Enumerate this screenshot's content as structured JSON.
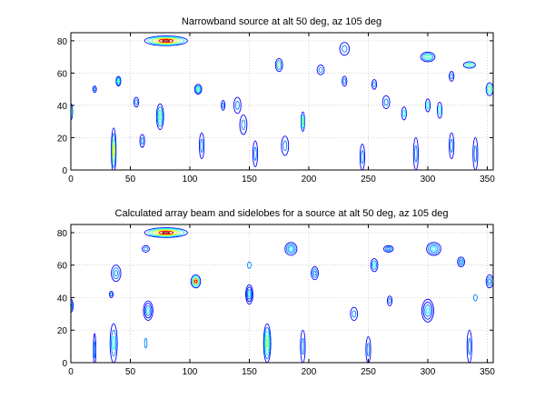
{
  "chart_data": [
    {
      "type": "contour",
      "title": "Narrowband source at alt 50 deg, az 105 deg",
      "xlim": [
        0,
        355
      ],
      "ylim": [
        0,
        85
      ],
      "xticks": [
        0,
        50,
        100,
        150,
        200,
        250,
        300,
        350
      ],
      "yticks": [
        0,
        20,
        40,
        60,
        80
      ],
      "grid": true,
      "features": [
        {
          "x": 80,
          "y": 80,
          "rx": 18,
          "ry": 3,
          "peak": 1.0,
          "levels": 6
        },
        {
          "x": 300,
          "y": 70,
          "rx": 6,
          "ry": 3,
          "peak": 0.55,
          "levels": 4
        },
        {
          "x": 335,
          "y": 65,
          "rx": 5,
          "ry": 2,
          "peak": 0.5,
          "levels": 3
        },
        {
          "x": 175,
          "y": 65,
          "rx": 3,
          "ry": 4,
          "peak": 0.45,
          "levels": 3
        },
        {
          "x": 40,
          "y": 55,
          "rx": 2,
          "ry": 3,
          "peak": 0.55,
          "levels": 4
        },
        {
          "x": 107,
          "y": 50,
          "rx": 3,
          "ry": 3,
          "peak": 0.5,
          "levels": 4
        },
        {
          "x": 352,
          "y": 50,
          "rx": 3,
          "ry": 4,
          "peak": 0.5,
          "levels": 3
        },
        {
          "x": 75,
          "y": 33,
          "rx": 3,
          "ry": 8,
          "peak": 0.55,
          "levels": 4
        },
        {
          "x": 195,
          "y": 30,
          "rx": 1.5,
          "ry": 6,
          "peak": 0.55,
          "levels": 3
        },
        {
          "x": 36,
          "y": 12,
          "rx": 2,
          "ry": 14,
          "peak": 0.6,
          "levels": 4
        },
        {
          "x": 0,
          "y": 36,
          "rx": 1.5,
          "ry": 5,
          "peak": 0.5,
          "levels": 3
        },
        {
          "x": 140,
          "y": 40,
          "rx": 3,
          "ry": 5,
          "peak": 0.3,
          "levels": 2
        },
        {
          "x": 265,
          "y": 42,
          "rx": 3,
          "ry": 4,
          "peak": 0.3,
          "levels": 2
        },
        {
          "x": 280,
          "y": 35,
          "rx": 2,
          "ry": 4,
          "peak": 0.35,
          "levels": 2
        },
        {
          "x": 300,
          "y": 40,
          "rx": 2,
          "ry": 4,
          "peak": 0.35,
          "levels": 2
        },
        {
          "x": 310,
          "y": 37,
          "rx": 2,
          "ry": 5,
          "peak": 0.35,
          "levels": 2
        },
        {
          "x": 290,
          "y": 10,
          "rx": 2,
          "ry": 10,
          "peak": 0.3,
          "levels": 2
        },
        {
          "x": 245,
          "y": 8,
          "rx": 2,
          "ry": 8,
          "peak": 0.3,
          "levels": 2
        },
        {
          "x": 180,
          "y": 15,
          "rx": 3,
          "ry": 6,
          "peak": 0.3,
          "levels": 2
        },
        {
          "x": 320,
          "y": 15,
          "rx": 2,
          "ry": 8,
          "peak": 0.3,
          "levels": 2
        },
        {
          "x": 340,
          "y": 10,
          "rx": 2,
          "ry": 10,
          "peak": 0.3,
          "levels": 2
        },
        {
          "x": 230,
          "y": 55,
          "rx": 2,
          "ry": 3,
          "peak": 0.25,
          "levels": 2
        },
        {
          "x": 255,
          "y": 53,
          "rx": 2,
          "ry": 3,
          "peak": 0.25,
          "levels": 2
        },
        {
          "x": 320,
          "y": 58,
          "rx": 2,
          "ry": 3,
          "peak": 0.25,
          "levels": 2
        },
        {
          "x": 210,
          "y": 62,
          "rx": 3,
          "ry": 3,
          "peak": 0.25,
          "levels": 2
        },
        {
          "x": 230,
          "y": 75,
          "rx": 4,
          "ry": 4,
          "peak": 0.25,
          "levels": 2
        },
        {
          "x": 145,
          "y": 28,
          "rx": 3,
          "ry": 6,
          "peak": 0.25,
          "levels": 2
        },
        {
          "x": 155,
          "y": 10,
          "rx": 2,
          "ry": 8,
          "peak": 0.3,
          "levels": 2
        },
        {
          "x": 110,
          "y": 15,
          "rx": 2,
          "ry": 8,
          "peak": 0.3,
          "levels": 2
        },
        {
          "x": 20,
          "y": 50,
          "rx": 1.5,
          "ry": 2,
          "peak": 0.25,
          "levels": 2
        },
        {
          "x": 55,
          "y": 42,
          "rx": 2,
          "ry": 3,
          "peak": 0.25,
          "levels": 2
        },
        {
          "x": 60,
          "y": 18,
          "rx": 2,
          "ry": 4,
          "peak": 0.25,
          "levels": 2
        },
        {
          "x": 128,
          "y": 40,
          "rx": 1.5,
          "ry": 3,
          "peak": 0.25,
          "levels": 2
        }
      ]
    },
    {
      "type": "contour",
      "title": "Calculated array beam and sidelobes for a source at alt 50 deg, az 105 deg",
      "xlim": [
        0,
        355
      ],
      "ylim": [
        0,
        85
      ],
      "xticks": [
        0,
        50,
        100,
        150,
        200,
        250,
        300,
        350
      ],
      "yticks": [
        0,
        20,
        40,
        60,
        80
      ],
      "grid": true,
      "features": [
        {
          "x": 80,
          "y": 80,
          "rx": 18,
          "ry": 3,
          "peak": 1.0,
          "levels": 6
        },
        {
          "x": 105,
          "y": 50,
          "rx": 4,
          "ry": 4,
          "peak": 0.9,
          "levels": 5
        },
        {
          "x": 185,
          "y": 70,
          "rx": 5,
          "ry": 4,
          "peak": 0.4,
          "levels": 4
        },
        {
          "x": 305,
          "y": 70,
          "rx": 6,
          "ry": 4,
          "peak": 0.4,
          "levels": 4
        },
        {
          "x": 267,
          "y": 70,
          "rx": 4,
          "ry": 2,
          "peak": 0.3,
          "levels": 3
        },
        {
          "x": 328,
          "y": 62,
          "rx": 3,
          "ry": 3,
          "peak": 0.3,
          "levels": 3
        },
        {
          "x": 255,
          "y": 60,
          "rx": 3,
          "ry": 4,
          "peak": 0.35,
          "levels": 3
        },
        {
          "x": 205,
          "y": 55,
          "rx": 3,
          "ry": 4,
          "peak": 0.3,
          "levels": 3
        },
        {
          "x": 38,
          "y": 55,
          "rx": 4,
          "ry": 5,
          "peak": 0.3,
          "levels": 3
        },
        {
          "x": 352,
          "y": 50,
          "rx": 3,
          "ry": 4,
          "peak": 0.3,
          "levels": 3
        },
        {
          "x": 63,
          "y": 70,
          "rx": 3,
          "ry": 2,
          "peak": 0.3,
          "levels": 2
        },
        {
          "x": 150,
          "y": 42,
          "rx": 3,
          "ry": 6,
          "peak": 0.35,
          "levels": 4
        },
        {
          "x": 65,
          "y": 32,
          "rx": 4,
          "ry": 6,
          "peak": 0.35,
          "levels": 4
        },
        {
          "x": 300,
          "y": 32,
          "rx": 5,
          "ry": 7,
          "peak": 0.35,
          "levels": 4
        },
        {
          "x": 34,
          "y": 42,
          "rx": 1.5,
          "ry": 2,
          "peak": 0.25,
          "levels": 2
        },
        {
          "x": 0,
          "y": 35,
          "rx": 2,
          "ry": 4,
          "peak": 0.3,
          "levels": 3
        },
        {
          "x": 268,
          "y": 38,
          "rx": 2,
          "ry": 3,
          "peak": 0.25,
          "levels": 2
        },
        {
          "x": 238,
          "y": 30,
          "rx": 3,
          "ry": 4,
          "peak": 0.25,
          "levels": 2
        },
        {
          "x": 165,
          "y": 12,
          "rx": 3,
          "ry": 12,
          "peak": 0.55,
          "levels": 5
        },
        {
          "x": 36,
          "y": 12,
          "rx": 3,
          "ry": 12,
          "peak": 0.35,
          "levels": 3
        },
        {
          "x": 20,
          "y": 8,
          "rx": 1,
          "ry": 10,
          "peak": 0.25,
          "levels": 2
        },
        {
          "x": 195,
          "y": 10,
          "rx": 2,
          "ry": 10,
          "peak": 0.25,
          "levels": 2
        },
        {
          "x": 250,
          "y": 8,
          "rx": 2,
          "ry": 8,
          "peak": 0.25,
          "levels": 2
        },
        {
          "x": 335,
          "y": 10,
          "rx": 2,
          "ry": 10,
          "peak": 0.25,
          "levels": 2
        },
        {
          "x": 63,
          "y": 12,
          "rx": 1,
          "ry": 3,
          "peak": 0.2,
          "levels": 1
        },
        {
          "x": 150,
          "y": 60,
          "rx": 1.5,
          "ry": 2,
          "peak": 0.2,
          "levels": 1
        },
        {
          "x": 340,
          "y": 40,
          "rx": 1.5,
          "ry": 2,
          "peak": 0.2,
          "levels": 1
        }
      ]
    }
  ]
}
